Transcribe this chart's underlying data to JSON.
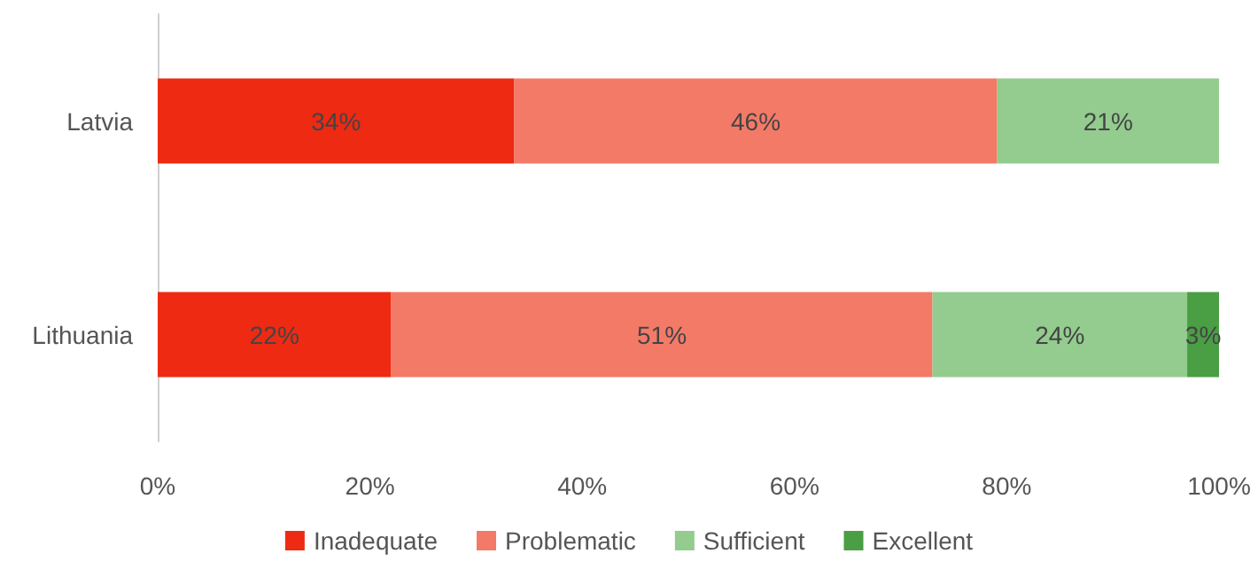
{
  "chart_data": {
    "type": "bar",
    "orientation": "horizontal",
    "stacked": true,
    "categories": [
      "Latvia",
      "Lithuania"
    ],
    "series": [
      {
        "name": "Inadequate",
        "color": "#ee2a12",
        "values": [
          33.6,
          22
        ],
        "value_labels": [
          "34%",
          "22%"
        ]
      },
      {
        "name": "Problematic",
        "color": "#f47a68",
        "values": [
          45.5,
          51
        ],
        "value_labels": [
          "46%",
          "51%"
        ]
      },
      {
        "name": "Sufficient",
        "color": "#93cc8e",
        "values": [
          20.9,
          24
        ],
        "value_labels": [
          "21%",
          "24%"
        ]
      },
      {
        "name": "Excellent",
        "color": "#4a9e44",
        "values": [
          null,
          3
        ],
        "value_labels": [
          null,
          "3%"
        ]
      }
    ],
    "xlim": [
      0,
      100
    ],
    "xticks": [
      {
        "value": 0,
        "label": "0%"
      },
      {
        "value": 20,
        "label": "20%"
      },
      {
        "value": 40,
        "label": "40%"
      },
      {
        "value": 60,
        "label": "60%"
      },
      {
        "value": 80,
        "label": "80%"
      },
      {
        "value": 100,
        "label": "100%"
      }
    ],
    "grid": false,
    "legend": "bottom"
  }
}
